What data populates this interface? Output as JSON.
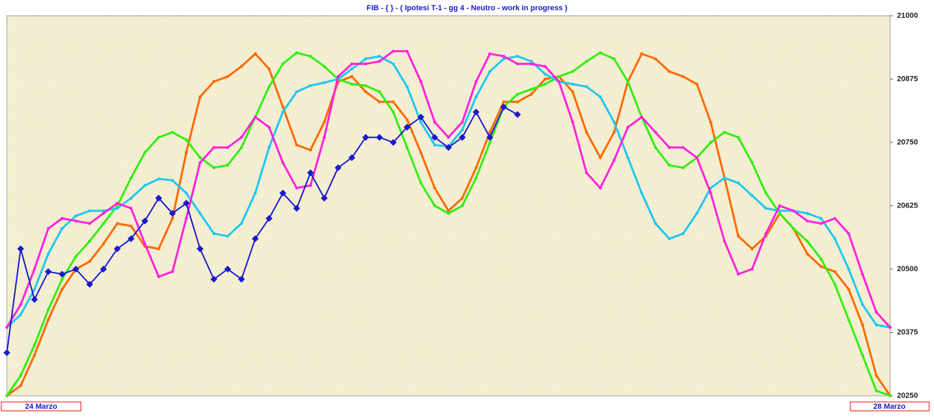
{
  "chart_data": {
    "type": "line",
    "title": "FIB  -  { } - ( Ipotesi T-1 - gg 4 - Neutro - work in progress )",
    "start_label": "24 Marzo",
    "end_label": "28 Marzo",
    "ylim": [
      20250,
      21000
    ],
    "yticks": [
      20250,
      20375,
      20500,
      20625,
      20750,
      20875,
      21000
    ],
    "series": [
      {
        "name": null,
        "color": "#ff6a00",
        "marker": "dot",
        "values": [
          20250,
          20270,
          20330,
          20400,
          20460,
          20500,
          20515,
          20550,
          20590,
          20585,
          20545,
          20540,
          20600,
          20730,
          20840,
          20870,
          20880,
          20900,
          20925,
          20895,
          20820,
          20745,
          20735,
          20790,
          20870,
          20880,
          20850,
          20830,
          20830,
          20795,
          20730,
          20660,
          20615,
          20640,
          20700,
          20770,
          20830,
          20830,
          20845,
          20875,
          20880,
          20850,
          20770,
          20720,
          20770,
          20870,
          20925,
          20915,
          20890,
          20880,
          20865,
          20790,
          20680,
          20565,
          20540,
          20565,
          20610,
          20580,
          20530,
          20505,
          20495,
          20460,
          20390,
          20290,
          20250
        ]
      },
      {
        "name": null,
        "color": "#33ee11",
        "marker": "dot",
        "values": [
          20250,
          20290,
          20350,
          20420,
          20480,
          20525,
          20555,
          20590,
          20625,
          20680,
          20730,
          20760,
          20770,
          20755,
          20720,
          20700,
          20705,
          20740,
          20800,
          20860,
          20905,
          20927,
          20920,
          20900,
          20875,
          20865,
          20862,
          20850,
          20810,
          20740,
          20670,
          20625,
          20610,
          20625,
          20680,
          20750,
          20820,
          20845,
          20855,
          20865,
          20880,
          20890,
          20910,
          20927,
          20915,
          20870,
          20800,
          20740,
          20705,
          20700,
          20720,
          20750,
          20770,
          20760,
          20710,
          20650,
          20610,
          20580,
          20555,
          20520,
          20470,
          20400,
          20330,
          20260,
          20250
        ]
      },
      {
        "name": null,
        "color": "#1ec8f0",
        "marker": "dot",
        "values": [
          20385,
          20410,
          20460,
          20530,
          20580,
          20605,
          20615,
          20615,
          20620,
          20640,
          20665,
          20678,
          20675,
          20650,
          20610,
          20570,
          20565,
          20590,
          20650,
          20740,
          20810,
          20850,
          20862,
          20868,
          20875,
          20895,
          20915,
          20920,
          20905,
          20860,
          20790,
          20745,
          20742,
          20775,
          20840,
          20890,
          20915,
          20920,
          20910,
          20885,
          20870,
          20865,
          20860,
          20840,
          20790,
          20720,
          20650,
          20590,
          20560,
          20570,
          20610,
          20660,
          20680,
          20670,
          20645,
          20620,
          20615,
          20615,
          20610,
          20600,
          20560,
          20500,
          20430,
          20390,
          20385
        ]
      },
      {
        "name": null,
        "color": "#ff22dd",
        "marker": "dot",
        "values": [
          20385,
          20430,
          20500,
          20580,
          20600,
          20595,
          20590,
          20610,
          20630,
          20620,
          20550,
          20485,
          20495,
          20600,
          20710,
          20740,
          20740,
          20760,
          20800,
          20780,
          20710,
          20660,
          20665,
          20760,
          20880,
          20905,
          20905,
          20910,
          20930,
          20930,
          20870,
          20790,
          20760,
          20790,
          20870,
          20925,
          20920,
          20905,
          20905,
          20900,
          20870,
          20790,
          20690,
          20660,
          20715,
          20780,
          20800,
          20770,
          20740,
          20740,
          20720,
          20650,
          20555,
          20490,
          20500,
          20570,
          20625,
          20615,
          20595,
          20590,
          20600,
          20570,
          20490,
          20415,
          20385
        ]
      },
      {
        "name": null,
        "color": "#1a1acc",
        "marker": "diamond",
        "values": [
          20335,
          20540,
          20440,
          20495,
          20490,
          20500,
          20470,
          20500,
          20540,
          20560,
          20595,
          20640,
          20610,
          20630,
          20540,
          20480,
          20500,
          20480,
          20560,
          20600,
          20650,
          20620,
          20690,
          20640,
          20700,
          20720,
          20760,
          20760,
          20750,
          20780,
          20800,
          20760,
          20740,
          20760,
          20810,
          20760,
          20820,
          20805,
          null,
          null,
          null,
          null,
          null,
          null,
          null,
          null,
          null,
          null,
          null,
          null,
          null,
          null,
          null,
          null,
          null,
          null,
          null,
          null,
          null,
          null,
          null,
          null,
          null,
          null,
          null
        ]
      }
    ]
  }
}
